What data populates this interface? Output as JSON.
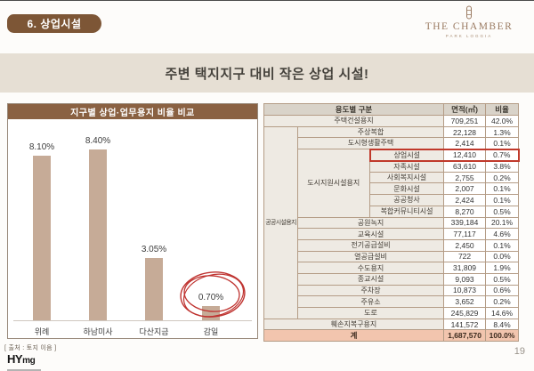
{
  "page": {
    "page_number": "19"
  },
  "header": {
    "badge": "6. 상업시설",
    "title": "주변 택지지구 대비 작은 상업 시설!"
  },
  "brand": {
    "name": "THE CHAMBER",
    "sub": "PARK LOGGIA"
  },
  "chart_data": {
    "type": "bar",
    "title": "지구별 상업·업무용지 비율 비교",
    "categories": [
      "위례",
      "하남미사",
      "다산지금",
      "감일"
    ],
    "values": [
      8.1,
      8.4,
      3.05,
      0.7
    ],
    "labels": [
      "8.10%",
      "8.40%",
      "3.05%",
      "0.70%"
    ],
    "ylabel": "",
    "xlabel": "",
    "ylim": [
      0,
      10
    ],
    "grid": false,
    "legend": "none",
    "bar_color": "#c6ab97",
    "annotation": {
      "type": "sketch-circle",
      "target": "감일 0.70%",
      "color": "#bf3330"
    },
    "source": "[ 출처 : 토지 이음 ]"
  },
  "table": {
    "header_cells": [
      {
        "t": "용도별 구분",
        "cs": 3
      },
      {
        "t": "면적(㎡)"
      },
      {
        "t": "비율"
      }
    ],
    "rows": [
      [
        {
          "t": "주택건설용지",
          "cs": 3,
          "cls": "cat"
        },
        {
          "t": "709,251",
          "cls": "val"
        },
        {
          "t": "42.0%",
          "cls": "val"
        }
      ],
      [
        {
          "t": "공공시설용지",
          "rs": 17,
          "cls": "cat cat-sm"
        },
        {
          "t": "주상복합",
          "cs": 2,
          "cls": "cat"
        },
        {
          "t": "22,128",
          "cls": "val"
        },
        {
          "t": "1.3%",
          "cls": "val"
        }
      ],
      [
        {
          "t": "도시형생활주택",
          "cs": 2,
          "cls": "cat"
        },
        {
          "t": "2,414",
          "cls": "val"
        },
        {
          "t": "0.1%",
          "cls": "val"
        }
      ],
      [
        {
          "t": "도시지원시설용지",
          "rs": 6,
          "cls": "cat"
        },
        {
          "t": "상업시설",
          "cls": "cat hl hl-l"
        },
        {
          "t": "12,410",
          "cls": "val hl"
        },
        {
          "t": "0.7%",
          "cls": "val hl hl-r"
        }
      ],
      [
        {
          "t": "자족시설",
          "cls": "cat"
        },
        {
          "t": "63,610",
          "cls": "val"
        },
        {
          "t": "3.8%",
          "cls": "val"
        }
      ],
      [
        {
          "t": "사회복지시설",
          "cls": "cat"
        },
        {
          "t": "2,755",
          "cls": "val"
        },
        {
          "t": "0.2%",
          "cls": "val"
        }
      ],
      [
        {
          "t": "문화시설",
          "cls": "cat"
        },
        {
          "t": "2,007",
          "cls": "val"
        },
        {
          "t": "0.1%",
          "cls": "val"
        }
      ],
      [
        {
          "t": "공공청사",
          "cls": "cat"
        },
        {
          "t": "2,424",
          "cls": "val"
        },
        {
          "t": "0.1%",
          "cls": "val"
        }
      ],
      [
        {
          "t": "복합커뮤니티시설",
          "cls": "cat"
        },
        {
          "t": "8,270",
          "cls": "val"
        },
        {
          "t": "0.5%",
          "cls": "val"
        }
      ],
      [
        {
          "t": "공원녹지",
          "cs": 2,
          "cls": "cat"
        },
        {
          "t": "339,184",
          "cls": "val"
        },
        {
          "t": "20.1%",
          "cls": "val"
        }
      ],
      [
        {
          "t": "교육시설",
          "cs": 2,
          "cls": "cat"
        },
        {
          "t": "77,117",
          "cls": "val"
        },
        {
          "t": "4.6%",
          "cls": "val"
        }
      ],
      [
        {
          "t": "전기공급설비",
          "cs": 2,
          "cls": "cat"
        },
        {
          "t": "2,450",
          "cls": "val"
        },
        {
          "t": "0.1%",
          "cls": "val"
        }
      ],
      [
        {
          "t": "열공급설비",
          "cs": 2,
          "cls": "cat"
        },
        {
          "t": "722",
          "cls": "val"
        },
        {
          "t": "0.0%",
          "cls": "val"
        }
      ],
      [
        {
          "t": "수도용지",
          "cs": 2,
          "cls": "cat"
        },
        {
          "t": "31,809",
          "cls": "val"
        },
        {
          "t": "1.9%",
          "cls": "val"
        }
      ],
      [
        {
          "t": "종교시설",
          "cs": 2,
          "cls": "cat"
        },
        {
          "t": "9,093",
          "cls": "val"
        },
        {
          "t": "0.5%",
          "cls": "val"
        }
      ],
      [
        {
          "t": "주차장",
          "cs": 2,
          "cls": "cat"
        },
        {
          "t": "10,873",
          "cls": "val"
        },
        {
          "t": "0.6%",
          "cls": "val"
        }
      ],
      [
        {
          "t": "주유소",
          "cs": 2,
          "cls": "cat"
        },
        {
          "t": "3,652",
          "cls": "val"
        },
        {
          "t": "0.2%",
          "cls": "val"
        }
      ],
      [
        {
          "t": "도로",
          "cs": 2,
          "cls": "cat"
        },
        {
          "t": "245,829",
          "cls": "val"
        },
        {
          "t": "14.6%",
          "cls": "val"
        }
      ],
      [
        {
          "t": "훼손지복구용지",
          "cs": 3,
          "cls": "cat"
        },
        {
          "t": "141,572",
          "cls": "val"
        },
        {
          "t": "8.4%",
          "cls": "val"
        }
      ],
      [
        {
          "t": "계",
          "cs": 3,
          "cls": "total"
        },
        {
          "t": "1,687,570",
          "cls": "total"
        },
        {
          "t": "100.0%",
          "cls": "total"
        }
      ]
    ]
  },
  "footer": {
    "logo_main": "HY",
    "logo_sub": "mg"
  },
  "colors": {
    "accent_brown": "#7d5636",
    "chart_header_brown": "#8a6142",
    "banner_beige": "#e6dfd4",
    "bar_tan": "#c6ab97",
    "highlight_red": "#c0392b",
    "total_row_salmon": "#f2c5ae"
  }
}
